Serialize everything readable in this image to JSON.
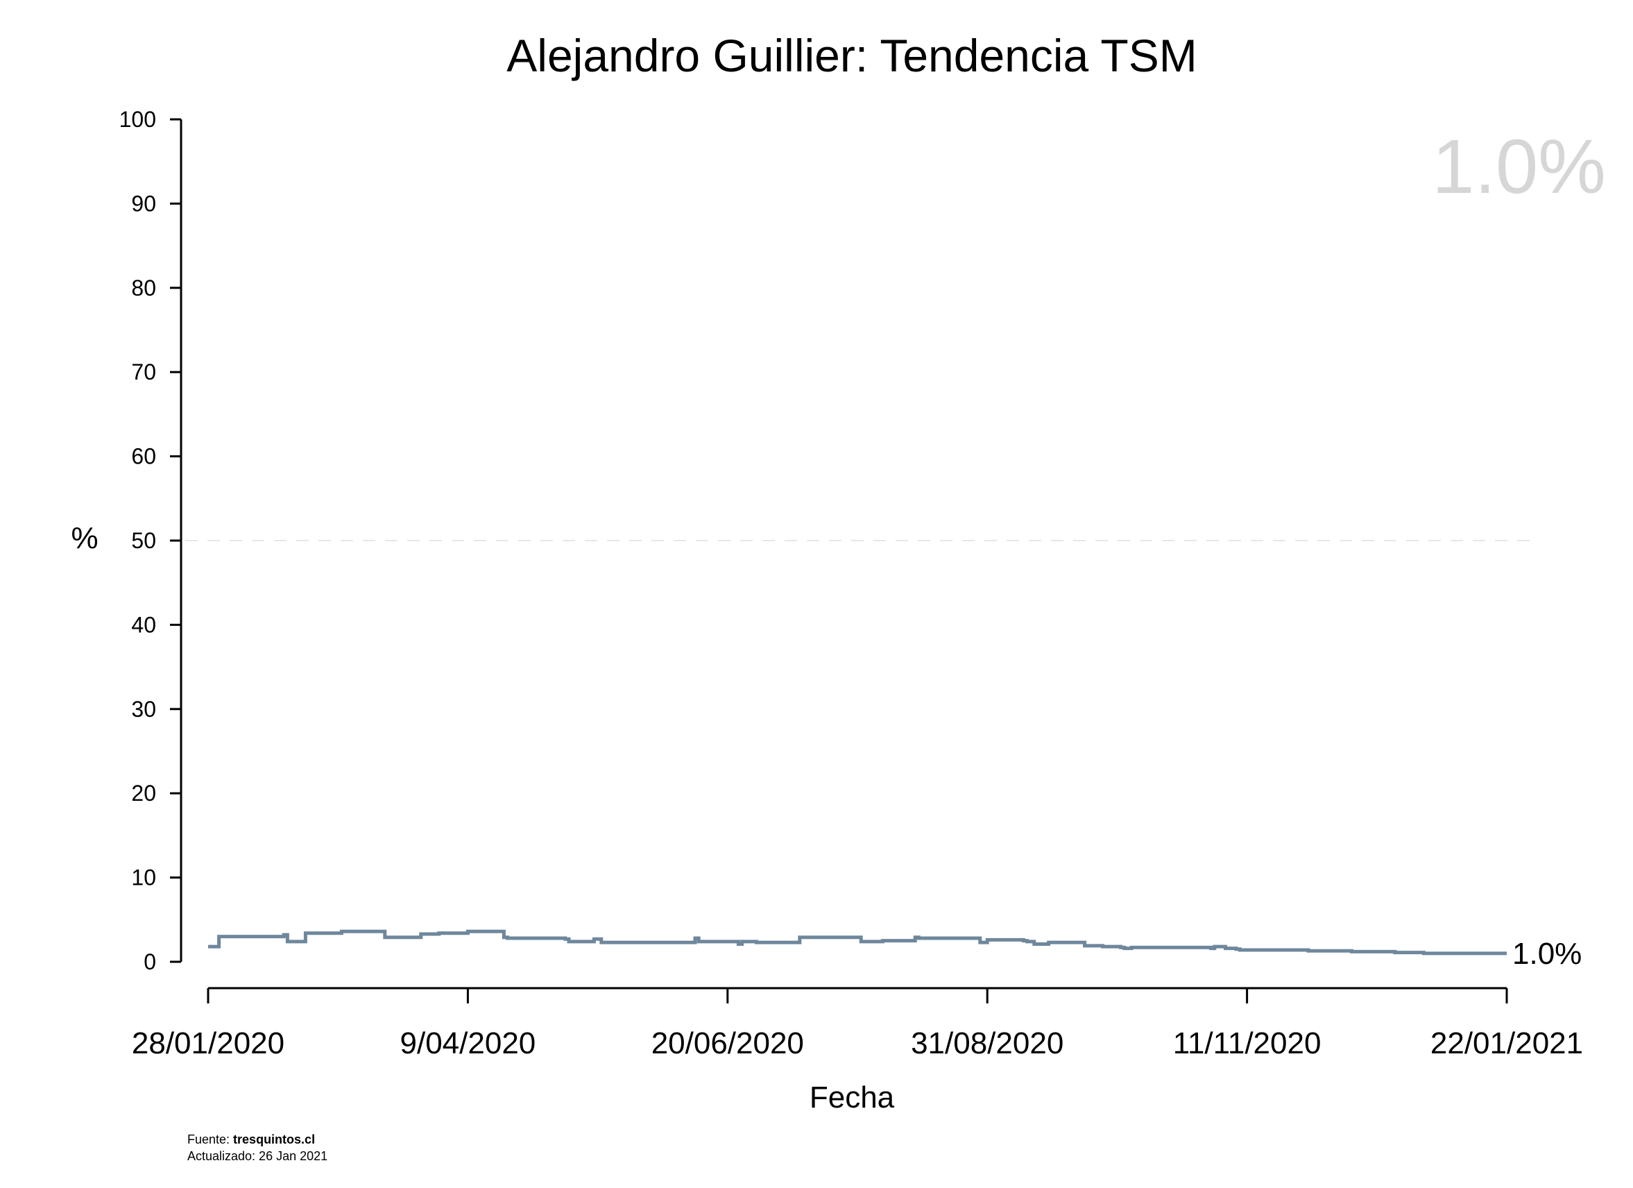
{
  "chart_data": {
    "type": "line",
    "title": "Alejandro Guillier: Tendencia TSM",
    "xlabel": "Fecha",
    "ylabel": "%",
    "ylim": [
      0,
      100
    ],
    "yticks": [
      "0",
      "10",
      "20",
      "30",
      "40",
      "50",
      "60",
      "70",
      "80",
      "90",
      "100"
    ],
    "xticks": [
      "28/01/2020",
      "9/04/2020",
      "20/06/2020",
      "31/08/2020",
      "11/11/2020",
      "22/01/2021"
    ],
    "reference_line": 50,
    "line_color": "#6e879c",
    "x": [
      "2020-01-28",
      "2020-01-31",
      "2020-02-02",
      "2020-02-18",
      "2020-02-19",
      "2020-02-21",
      "2020-02-24",
      "2020-03-03",
      "2020-03-05",
      "2020-03-15",
      "2020-03-17",
      "2020-03-27",
      "2020-03-31",
      "2020-04-01",
      "2020-04-09",
      "2020-04-19",
      "2020-04-20",
      "2020-05-06",
      "2020-05-07",
      "2020-05-14",
      "2020-05-16",
      "2020-05-21",
      "2020-05-26",
      "2020-06-01",
      "2020-06-11",
      "2020-06-12",
      "2020-06-20",
      "2020-06-23",
      "2020-06-24",
      "2020-06-28",
      "2020-07-10",
      "2020-07-11",
      "2020-07-27",
      "2020-08-01",
      "2020-08-02",
      "2020-08-11",
      "2020-08-12",
      "2020-08-14",
      "2020-08-29",
      "2020-08-31",
      "2020-09-10",
      "2020-09-11",
      "2020-09-13",
      "2020-09-17",
      "2020-09-19",
      "2020-09-27",
      "2020-10-02",
      "2020-10-07",
      "2020-10-08",
      "2020-10-10",
      "2020-11-01",
      "2020-11-02",
      "2020-11-05",
      "2020-11-08",
      "2020-11-09",
      "2020-11-11",
      "2020-11-28",
      "2020-11-29",
      "2020-12-10",
      "2020-12-22",
      "2020-12-30",
      "2021-01-22"
    ],
    "values": [
      1.8,
      3.0,
      3.0,
      3.2,
      2.4,
      2.4,
      3.4,
      3.4,
      3.6,
      3.6,
      2.9,
      3.3,
      3.3,
      3.4,
      3.6,
      2.9,
      2.8,
      2.7,
      2.4,
      2.7,
      2.3,
      2.3,
      2.3,
      2.3,
      2.8,
      2.4,
      2.4,
      2.1,
      2.4,
      2.3,
      2.9,
      2.9,
      2.4,
      2.4,
      2.5,
      2.9,
      2.8,
      2.8,
      2.3,
      2.6,
      2.5,
      2.4,
      2.1,
      2.3,
      2.3,
      1.9,
      1.8,
      1.7,
      1.6,
      1.7,
      1.6,
      1.8,
      1.6,
      1.5,
      1.4,
      1.4,
      1.3,
      1.3,
      1.2,
      1.1,
      1.0,
      1.0
    ],
    "current_value_label": "1.0%",
    "end_label": "1.0%"
  },
  "footer": {
    "source_prefix": "Fuente: ",
    "source_name": "tresquintos.cl",
    "updated": "Actualizado: 26 Jan 2021"
  }
}
